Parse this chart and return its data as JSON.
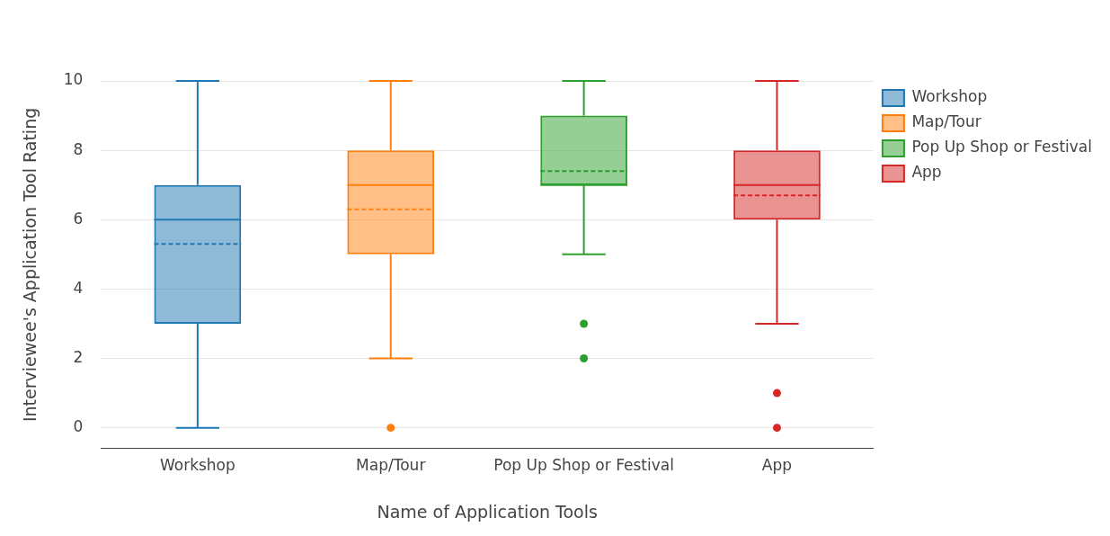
{
  "chart_data": {
    "type": "box",
    "xlabel": "Name of Application Tools",
    "ylabel": "Interviewee's Application Tool Rating",
    "categories": [
      "Workshop",
      "Map/Tour",
      "Pop Up Shop or Festival",
      "App"
    ],
    "series": [
      {
        "name": "Workshop",
        "color": "#1f77b4",
        "x": [
          "Workshop"
        ],
        "boxes": [
          {
            "low": 0,
            "q1": 3,
            "median": 6,
            "q3": 7,
            "high": 10,
            "mean": 5.3
          }
        ]
      },
      {
        "name": "Map/Tour",
        "color": "#ff7f0e",
        "x": [
          "Map/Tour"
        ],
        "boxes": [
          {
            "low": 2,
            "q1": 5,
            "median": 7,
            "q3": 8,
            "high": 10,
            "mean": 6.3,
            "outliers": [
              0
            ]
          }
        ]
      },
      {
        "name": "Pop Up Shop or Festival",
        "color": "#2ca02c",
        "x": [
          "Pop Up Shop or Festival"
        ],
        "boxes": [
          {
            "low": 5,
            "q1": 7,
            "median": 7,
            "q3": 9,
            "high": 10,
            "mean": 7.4,
            "outliers": [
              3,
              2
            ]
          }
        ]
      },
      {
        "name": "App",
        "color": "#d62728",
        "x": [
          "App"
        ],
        "boxes": [
          {
            "low": 3,
            "q1": 6,
            "median": 7,
            "q3": 8,
            "high": 10,
            "mean": 6.7,
            "outliers": [
              1,
              0
            ]
          }
        ]
      }
    ],
    "ylim": [
      -0.6,
      10
    ],
    "yticks": [
      0,
      2,
      4,
      6,
      8,
      10
    ],
    "grid": "y",
    "legend": "top right"
  }
}
